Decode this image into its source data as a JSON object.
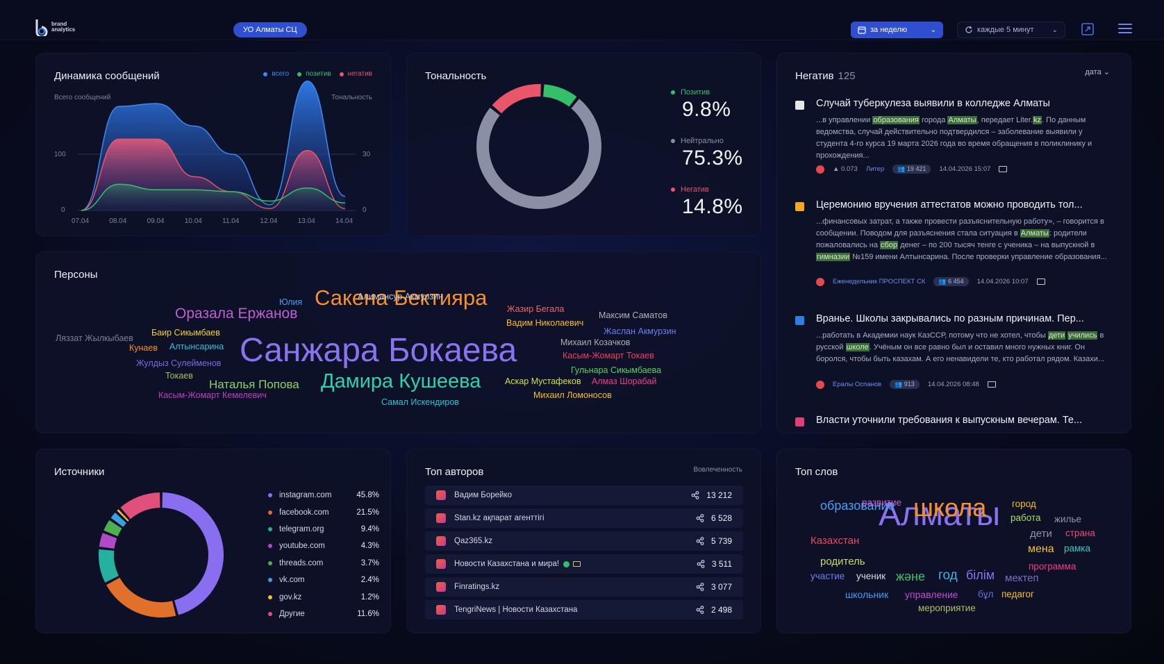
{
  "header": {
    "logo_text": "brand\nanalytics",
    "org": "УО Алматы СЦ",
    "period": "за неделю",
    "refresh": "каждые 5 минут"
  },
  "dynamics": {
    "title": "Динамика сообщений",
    "legend": [
      {
        "label": "всего",
        "color": "#3b8bf0"
      },
      {
        "label": "позитив",
        "color": "#34c06a"
      },
      {
        "label": "негатив",
        "color": "#e8566a"
      }
    ],
    "left_axis_label": "Всего сообщений",
    "right_axis_label": "Тональность",
    "left_ticks": [
      "0",
      "100"
    ],
    "right_ticks": [
      "0",
      "30"
    ],
    "x_labels": [
      "07.04",
      "08.04",
      "09.04",
      "10.04",
      "11.04",
      "12.04",
      "13.04",
      "14.04"
    ]
  },
  "chart_data": {
    "type": "area",
    "x": [
      "07.04",
      "08.04",
      "09.04",
      "10.04",
      "11.04",
      "12.04",
      "13.04",
      "14.04"
    ],
    "ylabel": "Всего сообщений",
    "y2label": "Тональность",
    "series": [
      {
        "name": "всего",
        "axis": "left",
        "values": [
          0,
          185,
          190,
          150,
          100,
          10,
          230,
          25
        ]
      },
      {
        "name": "позитив",
        "axis": "right",
        "values": [
          0,
          14,
          11,
          11,
          10,
          5,
          12,
          4
        ]
      },
      {
        "name": "негатив",
        "axis": "right",
        "values": [
          0,
          38,
          38,
          18,
          10,
          1,
          32,
          1
        ]
      }
    ]
  },
  "tonality": {
    "title": "Тональность",
    "items": [
      {
        "label": "Позитив",
        "value": "9.8%",
        "color": "#34c06a",
        "share": 9.8
      },
      {
        "label": "Нейтрально",
        "value": "75.3%",
        "color": "#8a8fa6",
        "share": 75.3
      },
      {
        "label": "Негатив",
        "value": "14.8%",
        "color": "#e8566a",
        "share": 14.8
      }
    ]
  },
  "negative": {
    "title": "Негатив",
    "count": "125",
    "sort_label": "дата",
    "items": [
      {
        "title": "Случай туберкулеза выявили в колледже Алматы",
        "icon_color": "#e6e6e6",
        "text_parts": [
          "...в управлении ",
          "образования",
          " города ",
          "Алматы",
          ", передает Liter.",
          "kz",
          ". По данным ведомства, случай действительно подтвердился – заболевание выявили у студента 4-го курса 19 марта 2026 года во время обращения в поликлинику и прохождения..."
        ],
        "reach": "0.073",
        "source": "Литер",
        "audience": "19 421",
        "date": "14.04.2026 15:07"
      },
      {
        "title": "Церемонию вручения аттестатов можно проводить тол...",
        "icon_color": "#f5a623",
        "text_parts": [
          "...финансовых затрат, а также провести разъяснительную работу», – говорится в сообщении. Поводом для разъяснения стала ситуация в ",
          "Алматы",
          ": родители пожаловались на ",
          "сбор",
          " денег – по 200 тысяч тенге с ученика – на выпускной в ",
          "гимназии",
          " №159 имени Алтынсарина. После проверки управление образования..."
        ],
        "source": "Еженедельник ПРОСПЕКТ СК",
        "audience": "6 454",
        "date": "14.04.2026 10:07"
      },
      {
        "title": "Вранье. Школы закрывались по разным причинам. Пер...",
        "icon_color": "#2d7fe0",
        "text_parts": [
          "...работать в Академии наук КазССР, потому что не хотел, чтобы ",
          "дети",
          " ",
          "учились",
          " в русской ",
          "школе",
          ". Учёным он все равно был и оставил много нужных книг. Он боролся, чтобы быть казахам. А его ненавидели те, кто работал рядом. Казахи..."
        ],
        "source": "Ералы Оспанов",
        "audience": "913",
        "date": "14.04.2026 08:48"
      },
      {
        "title": "Власти уточнили требования к выпускным вечерам. Те...",
        "icon_color": "#e0407a"
      }
    ]
  },
  "persons": {
    "title": "Персоны",
    "words": [
      {
        "text": "Санжара Бокаева",
        "size": 48,
        "color": "#8a73f0"
      },
      {
        "text": "Сакена Бектияра",
        "size": 31,
        "color": "#f5902a"
      },
      {
        "text": "Дамира Кушеева",
        "size": 29,
        "color": "#2fd0b0"
      },
      {
        "text": "Оразала Ержанов",
        "size": 21,
        "color": "#c060d0"
      },
      {
        "text": "Наталья Попова",
        "size": 17,
        "color": "#8fd06a"
      },
      {
        "text": "Алимансур Акмурзин",
        "size": 12.5,
        "color": "#c8c8d0"
      },
      {
        "text": "Юлия",
        "size": 12.5,
        "color": "#4a9cf0"
      },
      {
        "text": "Жазир Бегала",
        "size": 12.5,
        "color": "#f0686a"
      },
      {
        "text": "Вадим Николаевич",
        "size": 12.5,
        "color": "#f5c02a"
      },
      {
        "text": "Максим Саматов",
        "size": 12.5,
        "color": "#b0b0b8"
      },
      {
        "text": "Жаслан Акмурзин",
        "size": 12.5,
        "color": "#6a80f0"
      },
      {
        "text": "Ляззат Жылкыбаев",
        "size": 12.5,
        "color": "#7a7f9c"
      },
      {
        "text": "Баир Сикымбаев",
        "size": 12.5,
        "color": "#f5d02a"
      },
      {
        "text": "Кунаев",
        "size": 12.5,
        "color": "#f5902a"
      },
      {
        "text": "Алтынсарина",
        "size": 12.5,
        "color": "#2fc0d0"
      },
      {
        "text": "Михаил Козачков",
        "size": 12.5,
        "color": "#b0b0b8"
      },
      {
        "text": "Касым-Жомарт Токаев",
        "size": 12.5,
        "color": "#f04060"
      },
      {
        "text": "Жулдыз Сулейменов",
        "size": 12.5,
        "color": "#7a6ae0"
      },
      {
        "text": "Гульнара Сикымбаева",
        "size": 12.5,
        "color": "#60d060"
      },
      {
        "text": "Токаев",
        "size": 12.5,
        "color": "#a0c060"
      },
      {
        "text": "Аскар Мустафеков",
        "size": 12.5,
        "color": "#d0e04a"
      },
      {
        "text": "Алмаз Шорабай",
        "size": 12.5,
        "color": "#f04080"
      },
      {
        "text": "Касым-Жомарт Кемелевич",
        "size": 12.5,
        "color": "#c040c0"
      },
      {
        "text": "Михаил Ломоносов",
        "size": 12.5,
        "color": "#f5c02a"
      },
      {
        "text": "Самал Искендиров",
        "size": 12.5,
        "color": "#2fc0d0"
      }
    ]
  },
  "sources": {
    "title": "Источники",
    "items": [
      {
        "name": "instagram.com",
        "pct": "45.8%",
        "color": "#8a6ef0",
        "share": 45.8
      },
      {
        "name": "facebook.com",
        "pct": "21.5%",
        "color": "#e0702a",
        "share": 21.5
      },
      {
        "name": "telegram.org",
        "pct": "9.4%",
        "color": "#26b0a0",
        "share": 9.4
      },
      {
        "name": "youtube.com",
        "pct": "4.3%",
        "color": "#b24ac8",
        "share": 4.3
      },
      {
        "name": "threads.com",
        "pct": "3.7%",
        "color": "#4cb050",
        "share": 3.7
      },
      {
        "name": "vk.com",
        "pct": "2.4%",
        "color": "#3aa0e0",
        "share": 2.4
      },
      {
        "name": "gov.kz",
        "pct": "1.2%",
        "color": "#f0c030",
        "share": 1.2
      },
      {
        "name": "Другие",
        "pct": "11.6%",
        "color": "#e0507a",
        "share": 11.6
      }
    ]
  },
  "authors": {
    "title": "Топ авторов",
    "caption": "Вовлеченность",
    "items": [
      {
        "name": "Вадим Борейко",
        "value": "13 212"
      },
      {
        "name": "Stan.kz ақпарат агенттігі",
        "value": "6 528"
      },
      {
        "name": "Qaz365.kz",
        "value": "5 739"
      },
      {
        "name": "Новости Казахстана и мира!",
        "value": "3 511"
      },
      {
        "name": "Finratings.kz",
        "value": "3 077"
      },
      {
        "name": "TengriNews | Новости Казахстана",
        "value": "2 498"
      }
    ]
  },
  "words": {
    "title": "Топ слов",
    "items": [
      {
        "text": "Алматы",
        "size": 48,
        "color": "#8a73f0"
      },
      {
        "text": "школа",
        "size": 36,
        "color": "#f5902a"
      },
      {
        "text": "образование",
        "size": 18,
        "color": "#4aa0f0"
      },
      {
        "text": "развитие",
        "size": 13.5,
        "color": "#c060d0"
      },
      {
        "text": "город",
        "size": 13.5,
        "color": "#f5c02a"
      },
      {
        "text": "работа",
        "size": 13.5,
        "color": "#a0e060"
      },
      {
        "text": "жилье",
        "size": 13.5,
        "color": "#9095b0"
      },
      {
        "text": "Казахстан",
        "size": 15,
        "color": "#f04a5a"
      },
      {
        "text": "дети",
        "size": 15,
        "color": "#9095b0"
      },
      {
        "text": "страна",
        "size": 13.5,
        "color": "#f04a7a"
      },
      {
        "text": "мена",
        "size": 16,
        "color": "#f5c02a"
      },
      {
        "text": "рамка",
        "size": 13.5,
        "color": "#2fd0c0"
      },
      {
        "text": "родитель",
        "size": 15,
        "color": "#c0e060"
      },
      {
        "text": "программа",
        "size": 13.5,
        "color": "#f04080"
      },
      {
        "text": "участие",
        "size": 13.5,
        "color": "#6a80f0"
      },
      {
        "text": "ученик",
        "size": 13.5,
        "color": "#d8dae6"
      },
      {
        "text": "және",
        "size": 18,
        "color": "#40c070"
      },
      {
        "text": "год",
        "size": 19,
        "color": "#40b0e0"
      },
      {
        "text": "білім",
        "size": 18,
        "color": "#8a73f0"
      },
      {
        "text": "мектеп",
        "size": 15,
        "color": "#7a70c0"
      },
      {
        "text": "школьник",
        "size": 14,
        "color": "#40a0f0"
      },
      {
        "text": "управление",
        "size": 14,
        "color": "#c050d0"
      },
      {
        "text": "бұл",
        "size": 13.5,
        "color": "#6a70e0"
      },
      {
        "text": "педагог",
        "size": 13.5,
        "color": "#f5c02a"
      },
      {
        "text": "мероприятие",
        "size": 13.5,
        "color": "#b0c060"
      }
    ]
  }
}
